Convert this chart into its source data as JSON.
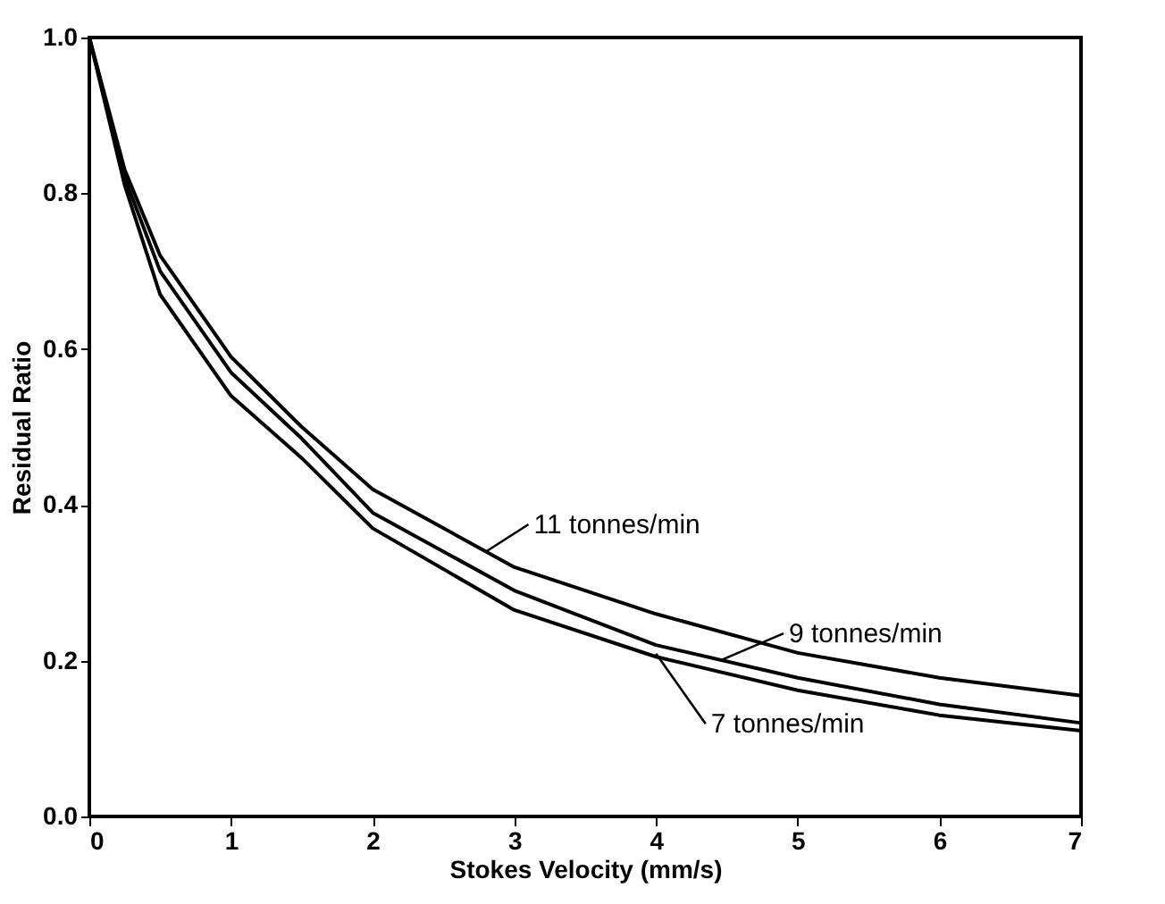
{
  "chart_data": {
    "type": "line",
    "xlabel": "Stokes Velocity (mm/s)",
    "ylabel": "Residual Ratio",
    "xlim": [
      0,
      7
    ],
    "ylim": [
      0,
      1
    ],
    "xticks": [
      0,
      1,
      2,
      3,
      4,
      5,
      6,
      7
    ],
    "yticks": [
      {
        "value": 0,
        "label": "0.0"
      },
      0.2,
      0.4,
      0.6,
      0.8,
      {
        "value": 1,
        "label": "1.0"
      }
    ],
    "grid": false,
    "marker": "none",
    "line_style": "solid",
    "x": [
      0,
      0.25,
      0.5,
      1,
      1.5,
      2,
      3,
      4,
      5,
      6,
      7
    ],
    "series": [
      {
        "color": "#000000",
        "values": [
          1.0,
          0.83,
          0.72,
          0.59,
          0.5,
          0.42,
          0.32,
          0.26,
          0.21,
          0.178,
          0.155
        ]
      },
      {
        "color": "#000000",
        "values": [
          1.0,
          0.82,
          0.7,
          0.57,
          0.485,
          0.39,
          0.29,
          0.22,
          0.178,
          0.144,
          0.12
        ]
      },
      {
        "color": "#000000",
        "values": [
          1.0,
          0.81,
          0.67,
          0.54,
          0.46,
          0.37,
          0.265,
          0.205,
          0.162,
          0.13,
          0.11
        ]
      }
    ],
    "annotations": [
      {
        "text": "11 tonnes/min",
        "x": 2.8,
        "y": 0.34
      },
      {
        "text": "9 tonnes/min",
        "x": 4.45,
        "y": 0.2
      },
      {
        "text": "7 tonnes/min",
        "x": 4.0,
        "y": 0.209
      }
    ]
  }
}
